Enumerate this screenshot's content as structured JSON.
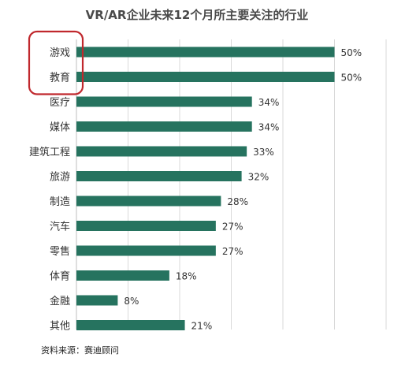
{
  "chart_data": {
    "type": "bar",
    "orientation": "horizontal",
    "title": "VR/AR企业未来12个月所主要关注的行业",
    "categories": [
      "游戏",
      "教育",
      "医疗",
      "媒体",
      "建筑工程",
      "旅游",
      "制造",
      "汽车",
      "零售",
      "体育",
      "金融",
      "其他"
    ],
    "values": [
      50,
      50,
      34,
      34,
      33,
      32,
      28,
      27,
      27,
      18,
      8,
      21
    ],
    "value_labels": [
      "50%",
      "50%",
      "34%",
      "34%",
      "33%",
      "32%",
      "28%",
      "27%",
      "27%",
      "18%",
      "8%",
      "21%"
    ],
    "xlim": [
      0,
      60
    ],
    "grid": true,
    "bar_color": "#26735f",
    "highlight": {
      "categories": [
        "游戏",
        "教育"
      ],
      "color": "#c0282d",
      "shape": "rounded-rectangle"
    }
  },
  "source_text": "资料来源：赛迪顾问"
}
